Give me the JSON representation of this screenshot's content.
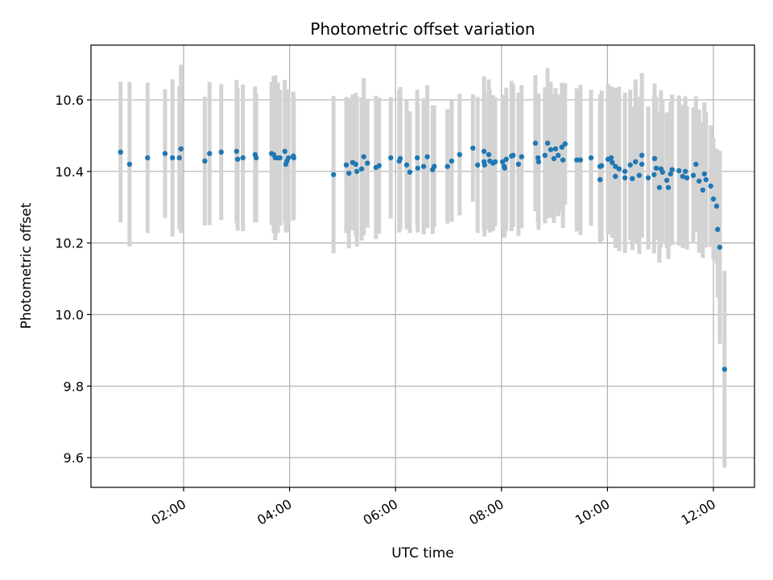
{
  "chart_data": {
    "type": "scatter",
    "title": "Photometric offset variation",
    "xlabel": "UTC time",
    "ylabel": "Photometric offset",
    "xunit": "hours (UTC)",
    "xlim": [
      0.252,
      12.775
    ],
    "ylim": [
      9.517,
      10.753
    ],
    "grid": true,
    "colors": {
      "points": "#1f77b4",
      "errorbars": "#d3d3d3",
      "grid": "#b0b0b0"
    },
    "xticks": [
      {
        "value": 2,
        "label": "02:00"
      },
      {
        "value": 4,
        "label": "04:00"
      },
      {
        "value": 6,
        "label": "06:00"
      },
      {
        "value": 8,
        "label": "08:00"
      },
      {
        "value": 10,
        "label": "10:00"
      },
      {
        "value": 12,
        "label": "12:00"
      }
    ],
    "yticks": [
      {
        "value": 9.6,
        "label": "9.6"
      },
      {
        "value": 9.8,
        "label": "9.8"
      },
      {
        "value": 10.0,
        "label": "10.0"
      },
      {
        "value": 10.2,
        "label": "10.2"
      },
      {
        "value": 10.4,
        "label": "10.4"
      },
      {
        "value": 10.6,
        "label": "10.6"
      }
    ],
    "points": [
      [
        0.81,
        10.454,
        0.197
      ],
      [
        0.98,
        10.42,
        0.23
      ],
      [
        1.32,
        10.438,
        0.21
      ],
      [
        1.65,
        10.45,
        0.18
      ],
      [
        1.79,
        10.438,
        0.22
      ],
      [
        1.92,
        10.438,
        0.2
      ],
      [
        1.95,
        10.463,
        0.235
      ],
      [
        2.4,
        10.429,
        0.18
      ],
      [
        2.49,
        10.45,
        0.2
      ],
      [
        2.71,
        10.454,
        0.19
      ],
      [
        3.0,
        10.456,
        0.2
      ],
      [
        3.02,
        10.434,
        0.2
      ],
      [
        3.12,
        10.438,
        0.205
      ],
      [
        3.35,
        10.447,
        0.19
      ],
      [
        3.37,
        10.438,
        0.18
      ],
      [
        3.66,
        10.45,
        0.2
      ],
      [
        3.7,
        10.447,
        0.22
      ],
      [
        3.73,
        10.438,
        0.23
      ],
      [
        3.78,
        10.438,
        0.21
      ],
      [
        3.82,
        10.438,
        0.19
      ],
      [
        3.91,
        10.456,
        0.2
      ],
      [
        3.93,
        10.42,
        0.19
      ],
      [
        3.95,
        10.429,
        0.2
      ],
      [
        3.98,
        10.438,
        0.19
      ],
      [
        4.07,
        10.443,
        0.18
      ],
      [
        4.08,
        10.438,
        0.17
      ],
      [
        4.83,
        10.391,
        0.22
      ],
      [
        5.07,
        10.418,
        0.19
      ],
      [
        5.12,
        10.395,
        0.21
      ],
      [
        5.19,
        10.425,
        0.19
      ],
      [
        5.25,
        10.42,
        0.2
      ],
      [
        5.27,
        10.4,
        0.21
      ],
      [
        5.36,
        10.407,
        0.2
      ],
      [
        5.4,
        10.441,
        0.22
      ],
      [
        5.47,
        10.423,
        0.18
      ],
      [
        5.63,
        10.411,
        0.2
      ],
      [
        5.69,
        10.416,
        0.19
      ],
      [
        5.91,
        10.438,
        0.17
      ],
      [
        6.07,
        10.429,
        0.2
      ],
      [
        6.09,
        10.436,
        0.2
      ],
      [
        6.21,
        10.418,
        0.18
      ],
      [
        6.27,
        10.398,
        0.17
      ],
      [
        6.41,
        10.438,
        0.19
      ],
      [
        6.42,
        10.409,
        0.18
      ],
      [
        6.53,
        10.414,
        0.19
      ],
      [
        6.6,
        10.441,
        0.2
      ],
      [
        6.7,
        10.405,
        0.18
      ],
      [
        6.73,
        10.414,
        0.17
      ],
      [
        6.98,
        10.414,
        0.16
      ],
      [
        7.06,
        10.429,
        0.17
      ],
      [
        7.21,
        10.447,
        0.17
      ],
      [
        7.46,
        10.465,
        0.15
      ],
      [
        7.55,
        10.418,
        0.19
      ],
      [
        7.67,
        10.456,
        0.21
      ],
      [
        7.67,
        10.427,
        0.19
      ],
      [
        7.68,
        10.418,
        0.2
      ],
      [
        7.76,
        10.447,
        0.21
      ],
      [
        7.78,
        10.429,
        0.2
      ],
      [
        7.84,
        10.423,
        0.19
      ],
      [
        7.88,
        10.427,
        0.18
      ],
      [
        8.02,
        10.427,
        0.18
      ],
      [
        8.05,
        10.414,
        0.2
      ],
      [
        8.06,
        10.409,
        0.19
      ],
      [
        8.09,
        10.434,
        0.2
      ],
      [
        8.19,
        10.443,
        0.21
      ],
      [
        8.22,
        10.445,
        0.2
      ],
      [
        8.32,
        10.42,
        0.2
      ],
      [
        8.38,
        10.441,
        0.2
      ],
      [
        8.64,
        10.479,
        0.19
      ],
      [
        8.69,
        10.438,
        0.18
      ],
      [
        8.7,
        10.427,
        0.19
      ],
      [
        8.82,
        10.445,
        0.19
      ],
      [
        8.87,
        10.479,
        0.21
      ],
      [
        8.93,
        10.461,
        0.19
      ],
      [
        8.99,
        10.436,
        0.18
      ],
      [
        9.02,
        10.463,
        0.17
      ],
      [
        9.07,
        10.445,
        0.17
      ],
      [
        9.14,
        10.468,
        0.18
      ],
      [
        9.16,
        10.432,
        0.19
      ],
      [
        9.2,
        10.477,
        0.17
      ],
      [
        9.42,
        10.432,
        0.2
      ],
      [
        9.49,
        10.432,
        0.21
      ],
      [
        9.69,
        10.438,
        0.19
      ],
      [
        9.86,
        10.414,
        0.2
      ],
      [
        9.86,
        10.377,
        0.18
      ],
      [
        9.89,
        10.416,
        0.21
      ],
      [
        10.01,
        10.434,
        0.21
      ],
      [
        10.07,
        10.438,
        0.2
      ],
      [
        10.09,
        10.425,
        0.21
      ],
      [
        10.15,
        10.414,
        0.22
      ],
      [
        10.15,
        10.386,
        0.2
      ],
      [
        10.22,
        10.407,
        0.23
      ],
      [
        10.33,
        10.4,
        0.22
      ],
      [
        10.33,
        10.382,
        0.21
      ],
      [
        10.43,
        10.418,
        0.21
      ],
      [
        10.47,
        10.38,
        0.2
      ],
      [
        10.53,
        10.427,
        0.23
      ],
      [
        10.6,
        10.389,
        0.22
      ],
      [
        10.65,
        10.42,
        0.2
      ],
      [
        10.65,
        10.445,
        0.23
      ],
      [
        10.77,
        10.382,
        0.2
      ],
      [
        10.88,
        10.391,
        0.22
      ],
      [
        10.89,
        10.436,
        0.21
      ],
      [
        10.92,
        10.409,
        0.2
      ],
      [
        10.98,
        10.355,
        0.21
      ],
      [
        11.01,
        10.407,
        0.22
      ],
      [
        11.04,
        10.398,
        0.2
      ],
      [
        11.12,
        10.375,
        0.19
      ],
      [
        11.15,
        10.355,
        0.2
      ],
      [
        11.19,
        10.393,
        0.2
      ],
      [
        11.22,
        10.405,
        0.21
      ],
      [
        11.35,
        10.402,
        0.21
      ],
      [
        11.42,
        10.386,
        0.2
      ],
      [
        11.47,
        10.4,
        0.21
      ],
      [
        11.5,
        10.382,
        0.2
      ],
      [
        11.62,
        10.389,
        0.19
      ],
      [
        11.67,
        10.42,
        0.19
      ],
      [
        11.73,
        10.373,
        0.2
      ],
      [
        11.8,
        10.348,
        0.19
      ],
      [
        11.83,
        10.393,
        0.2
      ],
      [
        11.86,
        10.377,
        0.19
      ],
      [
        11.95,
        10.359,
        0.17
      ],
      [
        12.0,
        10.323,
        0.17
      ],
      [
        12.06,
        10.303,
        0.16
      ],
      [
        12.08,
        10.238,
        0.19
      ],
      [
        12.12,
        10.188,
        0.27
      ],
      [
        12.21,
        9.847,
        0.275
      ]
    ]
  }
}
